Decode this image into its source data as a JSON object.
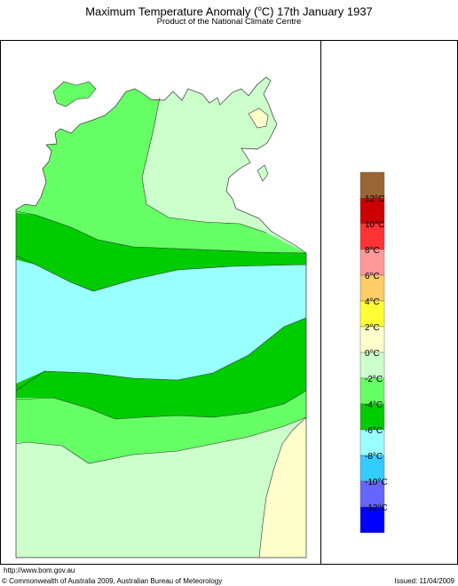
{
  "title_main": "Maximum Temperature Anomaly (",
  "title_sup": "o",
  "title_rest": "C)  17th January 1937",
  "subtitle": "Product of the National Climate Centre",
  "legend": [
    {
      "label": "",
      "color": "#996633"
    },
    {
      "label": "12°C",
      "color": "#cc0000"
    },
    {
      "label": "10°C",
      "color": "#ff3333"
    },
    {
      "label": "8°C",
      "color": "#ff9999"
    },
    {
      "label": "6°C",
      "color": "#ffcc66"
    },
    {
      "label": "4°C",
      "color": "#ffff33"
    },
    {
      "label": "2°C",
      "color": "#ffffcc"
    },
    {
      "label": "0°C",
      "color": "#ccffcc"
    },
    {
      "label": "-2°C",
      "color": "#66ff66"
    },
    {
      "label": "-4°C",
      "color": "#00cc00"
    },
    {
      "label": "-6°C",
      "color": "#99ffff"
    },
    {
      "label": "-8°C",
      "color": "#33ccff"
    },
    {
      "label": "-10°C",
      "color": "#6666ff"
    },
    {
      "label": "-12°C",
      "color": "#0000ff"
    }
  ],
  "map_regions": [
    "0 to 2 °C",
    "-2 to 0 °C",
    "-4 to -2 °C",
    "-6 to -4 °C",
    "-8 to -6 °C",
    "2 to 4 °C"
  ],
  "footer": {
    "url": "http://www.bom.gov.au",
    "copyright": "© Commonwealth of Australia 2009, Australian Bureau of Meteorology",
    "issued": "Issued: 11/04/2009"
  }
}
